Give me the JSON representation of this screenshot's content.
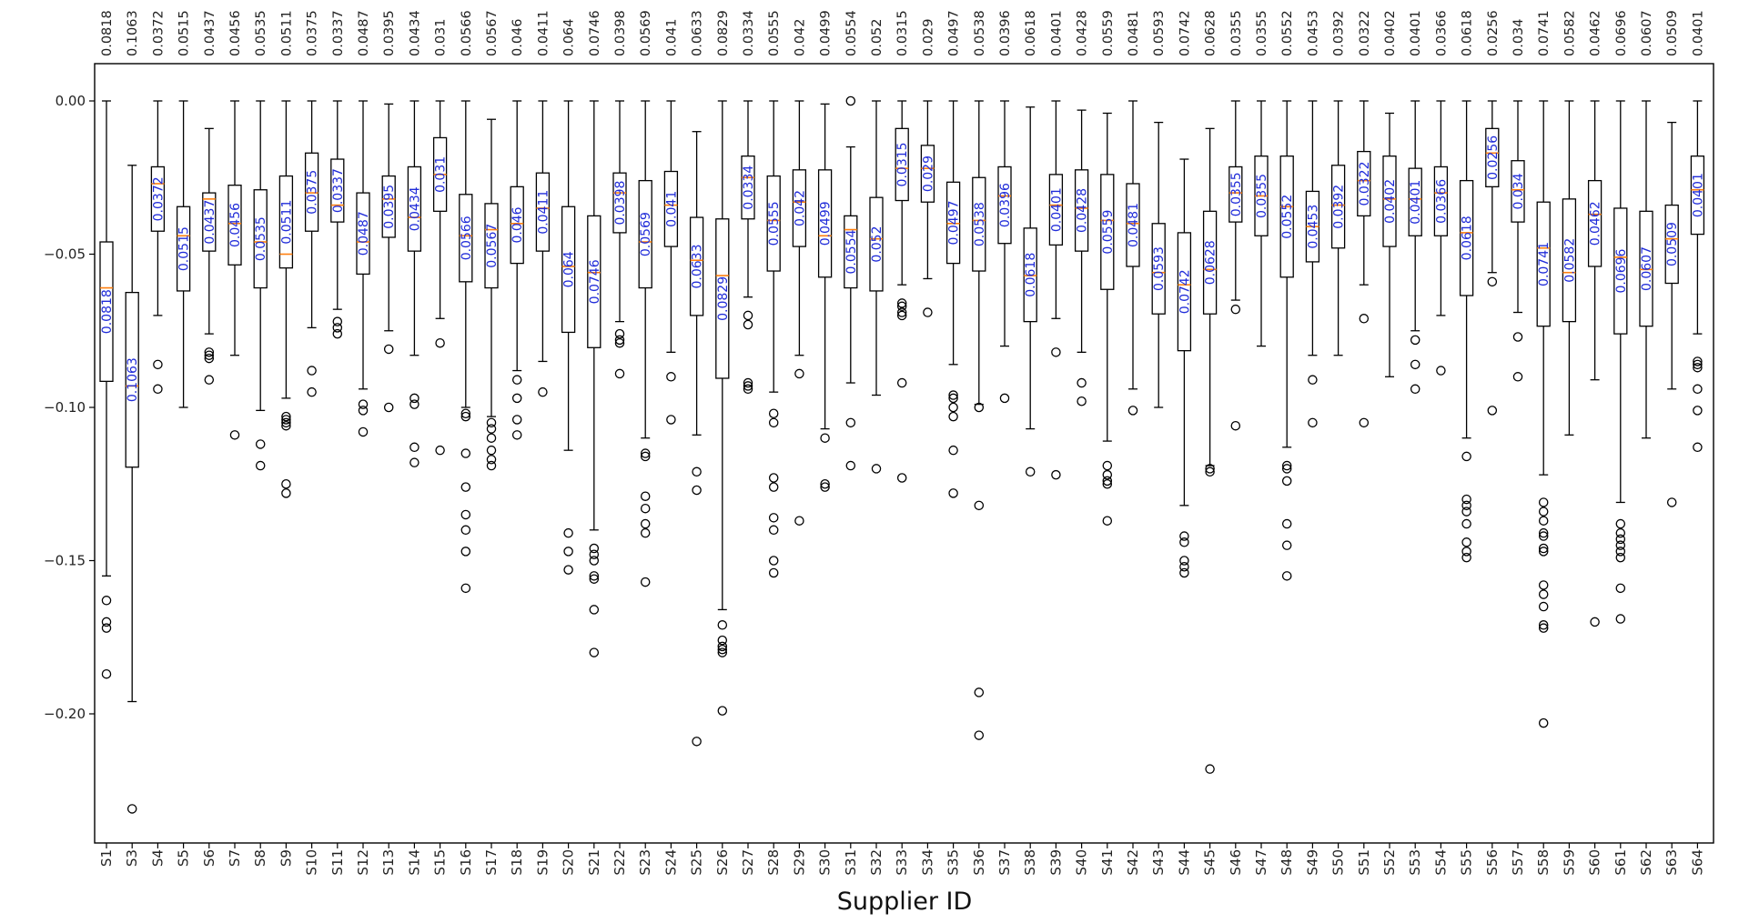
{
  "chart_data": {
    "type": "box",
    "xlabel": "Supplier ID",
    "ylabel": "",
    "ylim": [
      -0.245,
      0.005
    ],
    "yticks": [
      0.0,
      -0.05,
      -0.1,
      -0.15,
      -0.2
    ],
    "ytick_labels": [
      "0.00",
      "−0.05",
      "−0.10",
      "−0.15",
      "−0.20"
    ],
    "colors": {
      "box": "#000000",
      "median": "#ff7f0e",
      "label": "#1f2bd8"
    },
    "series": [
      {
        "name": "S1",
        "label": "0.0818",
        "q1": -0.0915,
        "med": -0.061,
        "q3": -0.046,
        "lo": -0.155,
        "hi": 0.0,
        "out": [
          -0.163,
          -0.17,
          -0.172,
          -0.187
        ]
      },
      {
        "name": "S3",
        "label": "0.1063",
        "q1": -0.1195,
        "med": -0.093,
        "q3": -0.0625,
        "lo": -0.196,
        "hi": -0.021,
        "out": [
          -0.231
        ]
      },
      {
        "name": "S4",
        "label": "0.0372",
        "q1": -0.0425,
        "med": -0.027,
        "q3": -0.0215,
        "lo": -0.07,
        "hi": 0.0,
        "out": [
          -0.086,
          -0.094
        ]
      },
      {
        "name": "S5",
        "label": "0.0515",
        "q1": -0.062,
        "med": -0.044,
        "q3": -0.0345,
        "lo": -0.1,
        "hi": 0.0,
        "out": []
      },
      {
        "name": "S6",
        "label": "0.0437",
        "q1": -0.049,
        "med": -0.032,
        "q3": -0.03,
        "lo": -0.076,
        "hi": -0.009,
        "out": [
          -0.082,
          -0.083,
          -0.084,
          -0.091
        ]
      },
      {
        "name": "S7",
        "label": "0.0456",
        "q1": -0.0535,
        "med": -0.04,
        "q3": -0.0275,
        "lo": -0.083,
        "hi": 0.0,
        "out": [
          -0.109
        ]
      },
      {
        "name": "S8",
        "label": "0.0535",
        "q1": -0.061,
        "med": -0.046,
        "q3": -0.029,
        "lo": -0.101,
        "hi": 0.0,
        "out": [
          -0.112,
          -0.119
        ]
      },
      {
        "name": "S9",
        "label": "0.0511",
        "q1": -0.0545,
        "med": -0.05,
        "q3": -0.0245,
        "lo": -0.097,
        "hi": 0.0,
        "out": [
          -0.103,
          -0.104,
          -0.105,
          -0.106,
          -0.125,
          -0.128
        ]
      },
      {
        "name": "S10",
        "label": "0.0375",
        "q1": -0.0425,
        "med": -0.03,
        "q3": -0.017,
        "lo": -0.074,
        "hi": 0.0,
        "out": [
          -0.088,
          -0.095
        ]
      },
      {
        "name": "S11",
        "label": "0.0337",
        "q1": -0.0395,
        "med": -0.034,
        "q3": -0.019,
        "lo": -0.068,
        "hi": 0.0,
        "out": [
          -0.072,
          -0.074,
          -0.076
        ]
      },
      {
        "name": "S12",
        "label": "0.0487",
        "q1": -0.0565,
        "med": -0.046,
        "q3": -0.03,
        "lo": -0.094,
        "hi": 0.0,
        "out": [
          -0.099,
          -0.101,
          -0.108
        ]
      },
      {
        "name": "S13",
        "label": "0.0395",
        "q1": -0.0445,
        "med": -0.032,
        "q3": -0.0245,
        "lo": -0.075,
        "hi": -0.001,
        "out": [
          -0.081,
          -0.1
        ]
      },
      {
        "name": "S14",
        "label": "0.0434",
        "q1": -0.049,
        "med": -0.038,
        "q3": -0.0215,
        "lo": -0.083,
        "hi": 0.0,
        "out": [
          -0.097,
          -0.099,
          -0.113,
          -0.118
        ]
      },
      {
        "name": "S15",
        "label": "0.031",
        "q1": -0.036,
        "med": -0.024,
        "q3": -0.012,
        "lo": -0.071,
        "hi": 0.0,
        "out": [
          -0.079,
          -0.114
        ]
      },
      {
        "name": "S16",
        "label": "0.0566",
        "q1": -0.059,
        "med": -0.044,
        "q3": -0.0305,
        "lo": -0.1,
        "hi": 0.0,
        "out": [
          -0.102,
          -0.103,
          -0.115,
          -0.126,
          -0.135,
          -0.14,
          -0.147,
          -0.159
        ]
      },
      {
        "name": "S17",
        "label": "0.0567",
        "q1": -0.061,
        "med": -0.042,
        "q3": -0.0335,
        "lo": -0.103,
        "hi": -0.006,
        "out": [
          -0.105,
          -0.107,
          -0.11,
          -0.114,
          -0.117,
          -0.119
        ]
      },
      {
        "name": "S18",
        "label": "0.046",
        "q1": -0.053,
        "med": -0.04,
        "q3": -0.028,
        "lo": -0.088,
        "hi": 0.0,
        "out": [
          -0.091,
          -0.097,
          -0.104,
          -0.109
        ]
      },
      {
        "name": "S19",
        "label": "0.0411",
        "q1": -0.049,
        "med": -0.035,
        "q3": -0.0235,
        "lo": -0.085,
        "hi": 0.0,
        "out": [
          -0.095
        ]
      },
      {
        "name": "S20",
        "label": "0.064",
        "q1": -0.0755,
        "med": -0.054,
        "q3": -0.0345,
        "lo": -0.114,
        "hi": 0.0,
        "out": [
          -0.141,
          -0.147,
          -0.153
        ]
      },
      {
        "name": "S21",
        "label": "0.0746",
        "q1": -0.0805,
        "med": -0.056,
        "q3": -0.0375,
        "lo": -0.14,
        "hi": 0.0,
        "out": [
          -0.146,
          -0.148,
          -0.15,
          -0.155,
          -0.156,
          -0.166,
          -0.18
        ]
      },
      {
        "name": "S22",
        "label": "0.0398",
        "q1": -0.043,
        "med": -0.03,
        "q3": -0.0235,
        "lo": -0.072,
        "hi": 0.0,
        "out": [
          -0.076,
          -0.078,
          -0.079,
          -0.089
        ]
      },
      {
        "name": "S23",
        "label": "0.0569",
        "q1": -0.061,
        "med": -0.046,
        "q3": -0.026,
        "lo": -0.11,
        "hi": 0.0,
        "out": [
          -0.115,
          -0.116,
          -0.129,
          -0.133,
          -0.138,
          -0.141,
          -0.157
        ]
      },
      {
        "name": "S24",
        "label": "0.041",
        "q1": -0.0475,
        "med": -0.034,
        "q3": -0.023,
        "lo": -0.082,
        "hi": 0.0,
        "out": [
          -0.09,
          -0.104
        ]
      },
      {
        "name": "S25",
        "label": "0.0633",
        "q1": -0.07,
        "med": -0.052,
        "q3": -0.038,
        "lo": -0.109,
        "hi": -0.01,
        "out": [
          -0.121,
          -0.127,
          -0.209
        ]
      },
      {
        "name": "S26",
        "label": "0.0829",
        "q1": -0.0905,
        "med": -0.057,
        "q3": -0.0385,
        "lo": -0.166,
        "hi": 0.0,
        "out": [
          -0.171,
          -0.176,
          -0.178,
          -0.179,
          -0.18,
          -0.199
        ]
      },
      {
        "name": "S27",
        "label": "0.0334",
        "q1": -0.0385,
        "med": -0.025,
        "q3": -0.018,
        "lo": -0.064,
        "hi": 0.0,
        "out": [
          -0.07,
          -0.073,
          -0.092,
          -0.093,
          -0.094
        ]
      },
      {
        "name": "S28",
        "label": "0.0555",
        "q1": -0.0555,
        "med": -0.039,
        "q3": -0.0245,
        "lo": -0.095,
        "hi": 0.0,
        "out": [
          -0.102,
          -0.105,
          -0.123,
          -0.126,
          -0.136,
          -0.14,
          -0.15,
          -0.154
        ]
      },
      {
        "name": "S29",
        "label": "0.042",
        "q1": -0.0475,
        "med": -0.033,
        "q3": -0.0225,
        "lo": -0.083,
        "hi": 0.0,
        "out": [
          -0.089,
          -0.137
        ]
      },
      {
        "name": "S30",
        "label": "0.0499",
        "q1": -0.0575,
        "med": -0.044,
        "q3": -0.0225,
        "lo": -0.107,
        "hi": -0.001,
        "out": [
          -0.11,
          -0.125,
          -0.126
        ]
      },
      {
        "name": "S31",
        "label": "0.0554",
        "q1": -0.061,
        "med": -0.042,
        "q3": -0.0375,
        "lo": -0.092,
        "hi": -0.015,
        "out": [
          0.0,
          -0.105,
          -0.119
        ]
      },
      {
        "name": "S32",
        "label": "0.052",
        "q1": -0.062,
        "med": -0.045,
        "q3": -0.0315,
        "lo": -0.096,
        "hi": 0.0,
        "out": [
          -0.12
        ]
      },
      {
        "name": "S33",
        "label": "0.0315",
        "q1": -0.0325,
        "med": -0.022,
        "q3": -0.009,
        "lo": -0.06,
        "hi": 0.0,
        "out": [
          -0.066,
          -0.067,
          -0.069,
          -0.07,
          -0.092,
          -0.123
        ]
      },
      {
        "name": "S34",
        "label": "0.029",
        "q1": -0.033,
        "med": -0.022,
        "q3": -0.0145,
        "lo": -0.058,
        "hi": 0.0,
        "out": [
          -0.069
        ]
      },
      {
        "name": "S35",
        "label": "0.0497",
        "q1": -0.053,
        "med": -0.04,
        "q3": -0.0265,
        "lo": -0.086,
        "hi": 0.0,
        "out": [
          -0.096,
          -0.097,
          -0.1,
          -0.103,
          -0.114,
          -0.128
        ]
      },
      {
        "name": "S36",
        "label": "0.0538",
        "q1": -0.0555,
        "med": -0.039,
        "q3": -0.025,
        "lo": -0.099,
        "hi": 0.0,
        "out": [
          -0.1,
          -0.132,
          -0.193,
          -0.207
        ]
      },
      {
        "name": "S37",
        "label": "0.0396",
        "q1": -0.0465,
        "med": -0.031,
        "q3": -0.0215,
        "lo": -0.08,
        "hi": 0.0,
        "out": [
          -0.097
        ]
      },
      {
        "name": "S38",
        "label": "0.0618",
        "q1": -0.072,
        "med": -0.057,
        "q3": -0.0415,
        "lo": -0.107,
        "hi": -0.002,
        "out": [
          -0.121
        ]
      },
      {
        "name": "S39",
        "label": "0.0401",
        "q1": -0.047,
        "med": -0.034,
        "q3": -0.024,
        "lo": -0.071,
        "hi": 0.0,
        "out": [
          -0.082,
          -0.122
        ]
      },
      {
        "name": "S40",
        "label": "0.0428",
        "q1": -0.049,
        "med": -0.035,
        "q3": -0.0225,
        "lo": -0.082,
        "hi": -0.003,
        "out": [
          -0.092,
          -0.098
        ]
      },
      {
        "name": "S41",
        "label": "0.0559",
        "q1": -0.0615,
        "med": -0.039,
        "q3": -0.024,
        "lo": -0.111,
        "hi": -0.004,
        "out": [
          -0.119,
          -0.122,
          -0.124,
          -0.125,
          -0.137
        ]
      },
      {
        "name": "S42",
        "label": "0.0481",
        "q1": -0.054,
        "med": -0.04,
        "q3": -0.027,
        "lo": -0.094,
        "hi": 0.0,
        "out": [
          -0.101
        ]
      },
      {
        "name": "S43",
        "label": "0.0593",
        "q1": -0.0695,
        "med": -0.056,
        "q3": -0.04,
        "lo": -0.1,
        "hi": -0.007,
        "out": []
      },
      {
        "name": "S44",
        "label": "0.0742",
        "q1": -0.0815,
        "med": -0.06,
        "q3": -0.043,
        "lo": -0.132,
        "hi": -0.019,
        "out": [
          -0.142,
          -0.144,
          -0.15,
          -0.152,
          -0.154
        ]
      },
      {
        "name": "S45",
        "label": "0.0628",
        "q1": -0.0695,
        "med": -0.055,
        "q3": -0.036,
        "lo": -0.119,
        "hi": -0.009,
        "out": [
          -0.12,
          -0.121,
          -0.218
        ]
      },
      {
        "name": "S46",
        "label": "0.0355",
        "q1": -0.0395,
        "med": -0.03,
        "q3": -0.0215,
        "lo": -0.065,
        "hi": 0.0,
        "out": [
          -0.068,
          -0.106
        ]
      },
      {
        "name": "S47",
        "label": "0.0355",
        "q1": -0.044,
        "med": -0.031,
        "q3": -0.018,
        "lo": -0.08,
        "hi": 0.0,
        "out": []
      },
      {
        "name": "S48",
        "label": "0.0552",
        "q1": -0.0575,
        "med": -0.0345,
        "q3": -0.018,
        "lo": -0.113,
        "hi": 0.0,
        "out": [
          -0.119,
          -0.12,
          -0.124,
          -0.138,
          -0.145,
          -0.155
        ]
      },
      {
        "name": "S49",
        "label": "0.0453",
        "q1": -0.0525,
        "med": -0.041,
        "q3": -0.0295,
        "lo": -0.083,
        "hi": 0.0,
        "out": [
          -0.091,
          -0.105
        ]
      },
      {
        "name": "S50",
        "label": "0.0392",
        "q1": -0.048,
        "med": -0.034,
        "q3": -0.021,
        "lo": -0.083,
        "hi": 0.0,
        "out": []
      },
      {
        "name": "S51",
        "label": "0.0322",
        "q1": -0.0375,
        "med": -0.026,
        "q3": -0.0165,
        "lo": -0.06,
        "hi": 0.0,
        "out": [
          -0.071,
          -0.105
        ]
      },
      {
        "name": "S52",
        "label": "0.0402",
        "q1": -0.0475,
        "med": -0.032,
        "q3": -0.018,
        "lo": -0.09,
        "hi": -0.004,
        "out": []
      },
      {
        "name": "S53",
        "label": "0.0401",
        "q1": -0.044,
        "med": -0.032,
        "q3": -0.022,
        "lo": -0.075,
        "hi": 0.0,
        "out": [
          -0.078,
          -0.086,
          -0.094
        ]
      },
      {
        "name": "S54",
        "label": "0.0366",
        "q1": -0.044,
        "med": -0.03,
        "q3": -0.0215,
        "lo": -0.07,
        "hi": 0.0,
        "out": [
          -0.088
        ]
      },
      {
        "name": "S55",
        "label": "0.0618",
        "q1": -0.0635,
        "med": -0.043,
        "q3": -0.026,
        "lo": -0.11,
        "hi": 0.0,
        "out": [
          -0.116,
          -0.13,
          -0.132,
          -0.134,
          -0.138,
          -0.144,
          -0.147,
          -0.149
        ]
      },
      {
        "name": "S56",
        "label": "0.0256",
        "q1": -0.028,
        "med": -0.017,
        "q3": -0.009,
        "lo": -0.056,
        "hi": 0.0,
        "out": [
          -0.059,
          -0.101
        ]
      },
      {
        "name": "S57",
        "label": "0.034",
        "q1": -0.0395,
        "med": -0.029,
        "q3": -0.0195,
        "lo": -0.069,
        "hi": 0.0,
        "out": [
          -0.077,
          -0.09
        ]
      },
      {
        "name": "S58",
        "label": "0.0741",
        "q1": -0.0735,
        "med": -0.048,
        "q3": -0.033,
        "lo": -0.122,
        "hi": 0.0,
        "out": [
          -0.131,
          -0.134,
          -0.137,
          -0.141,
          -0.142,
          -0.146,
          -0.147,
          -0.158,
          -0.161,
          -0.165,
          -0.171,
          -0.172,
          -0.203
        ]
      },
      {
        "name": "S59",
        "label": "0.0582",
        "q1": -0.072,
        "med": -0.056,
        "q3": -0.032,
        "lo": -0.109,
        "hi": 0.0,
        "out": []
      },
      {
        "name": "S60",
        "label": "0.0462",
        "q1": -0.054,
        "med": -0.037,
        "q3": -0.026,
        "lo": -0.091,
        "hi": 0.0,
        "out": [
          -0.17
        ]
      },
      {
        "name": "S61",
        "label": "0.0696",
        "q1": -0.076,
        "med": -0.051,
        "q3": -0.035,
        "lo": -0.131,
        "hi": 0.0,
        "out": [
          -0.138,
          -0.141,
          -0.143,
          -0.145,
          -0.147,
          -0.149,
          -0.159,
          -0.169
        ]
      },
      {
        "name": "S62",
        "label": "0.0607",
        "q1": -0.0735,
        "med": -0.055,
        "q3": -0.036,
        "lo": -0.11,
        "hi": 0.0,
        "out": []
      },
      {
        "name": "S63",
        "label": "0.0509",
        "q1": -0.0595,
        "med": -0.045,
        "q3": -0.034,
        "lo": -0.094,
        "hi": -0.007,
        "out": [
          -0.131
        ]
      },
      {
        "name": "S64",
        "label": "0.0401",
        "q1": -0.0435,
        "med": -0.029,
        "q3": -0.018,
        "lo": -0.076,
        "hi": 0.0,
        "out": [
          -0.085,
          -0.086,
          -0.087,
          -0.094,
          -0.101,
          -0.113
        ]
      }
    ]
  }
}
